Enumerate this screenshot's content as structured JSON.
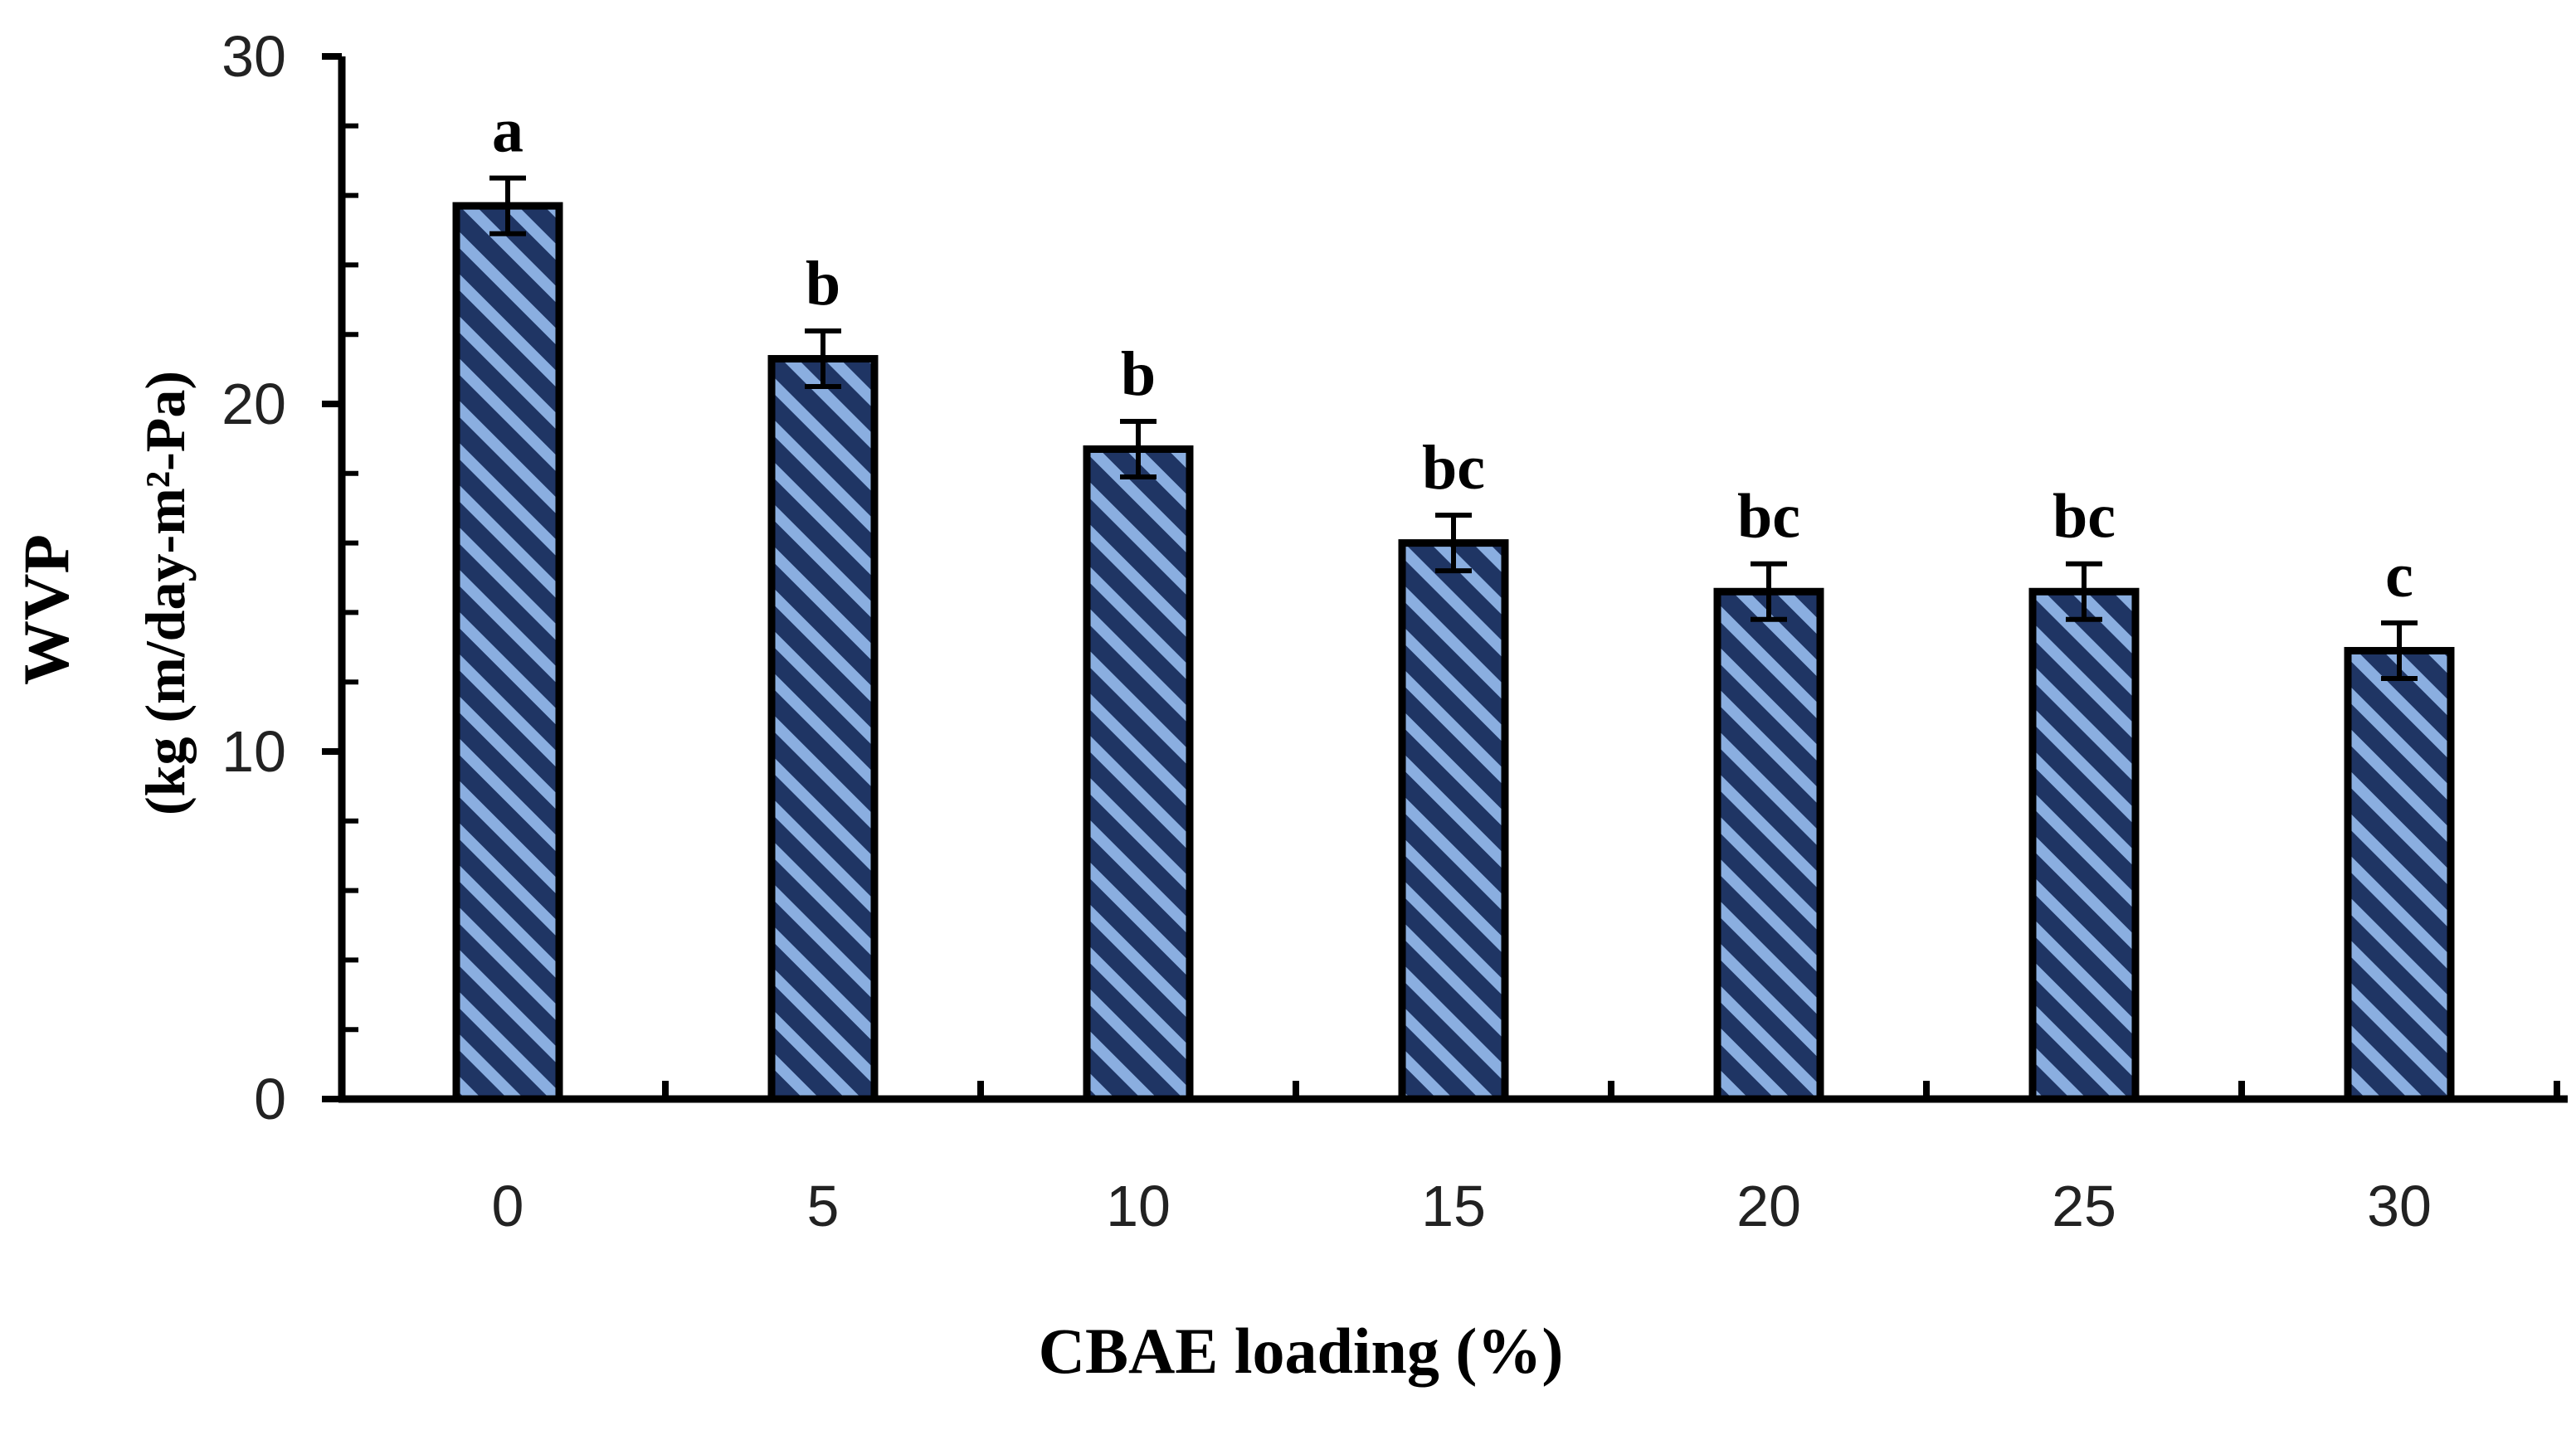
{
  "chart_data": {
    "type": "bar",
    "title": "",
    "xlabel": "CBAE loading (%)",
    "ylabel_line1": "WVP",
    "ylabel_line2": "(kg (m/day-m²-Pa)",
    "categories": [
      "0",
      "5",
      "10",
      "15",
      "20",
      "25",
      "30"
    ],
    "values": [
      25.7,
      21.3,
      18.7,
      16.0,
      14.6,
      14.6,
      12.9
    ],
    "errors": [
      0.8,
      0.8,
      0.8,
      0.8,
      0.8,
      0.8,
      0.8
    ],
    "significance": [
      "a",
      "b",
      "b",
      "bc",
      "bc",
      "bc",
      "c"
    ],
    "ylim": [
      0,
      30
    ],
    "yticks": [
      "0",
      "10",
      "20",
      "30"
    ],
    "grid": false,
    "legend": "none",
    "colors": {
      "bar_dark": "#1f3564",
      "bar_stripe": "#8aaee0",
      "outline": "#000000"
    }
  }
}
